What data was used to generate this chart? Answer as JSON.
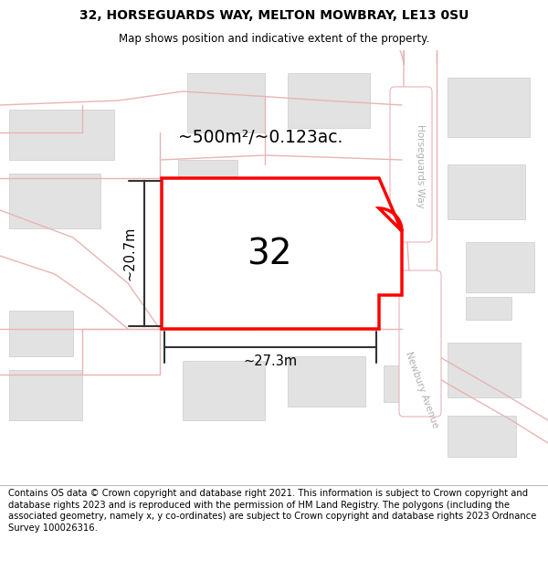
{
  "title_line1": "32, HORSEGUARDS WAY, MELTON MOWBRAY, LE13 0SU",
  "title_line2": "Map shows position and indicative extent of the property.",
  "footer_text": "Contains OS data © Crown copyright and database right 2021. This information is subject to Crown copyright and database rights 2023 and is reproduced with the permission of HM Land Registry. The polygons (including the associated geometry, namely x, y co-ordinates) are subject to Crown copyright and database rights 2023 Ordnance Survey 100026316.",
  "area_label": "~500m²/~0.123ac.",
  "width_label": "~27.3m",
  "height_label": "~20.7m",
  "number_label": "32",
  "bg_color": "#ffffff",
  "road_color": "#e8b4b4",
  "building_color": "#e0e0e0",
  "highlight_color": "#ff0000",
  "highlight_fill": "#ffffff",
  "road_label_color": "#b0b0b0",
  "dim_line_color": "#333333",
  "title_fontsize": 10,
  "footer_fontsize": 7.2,
  "number_fontsize": 26
}
